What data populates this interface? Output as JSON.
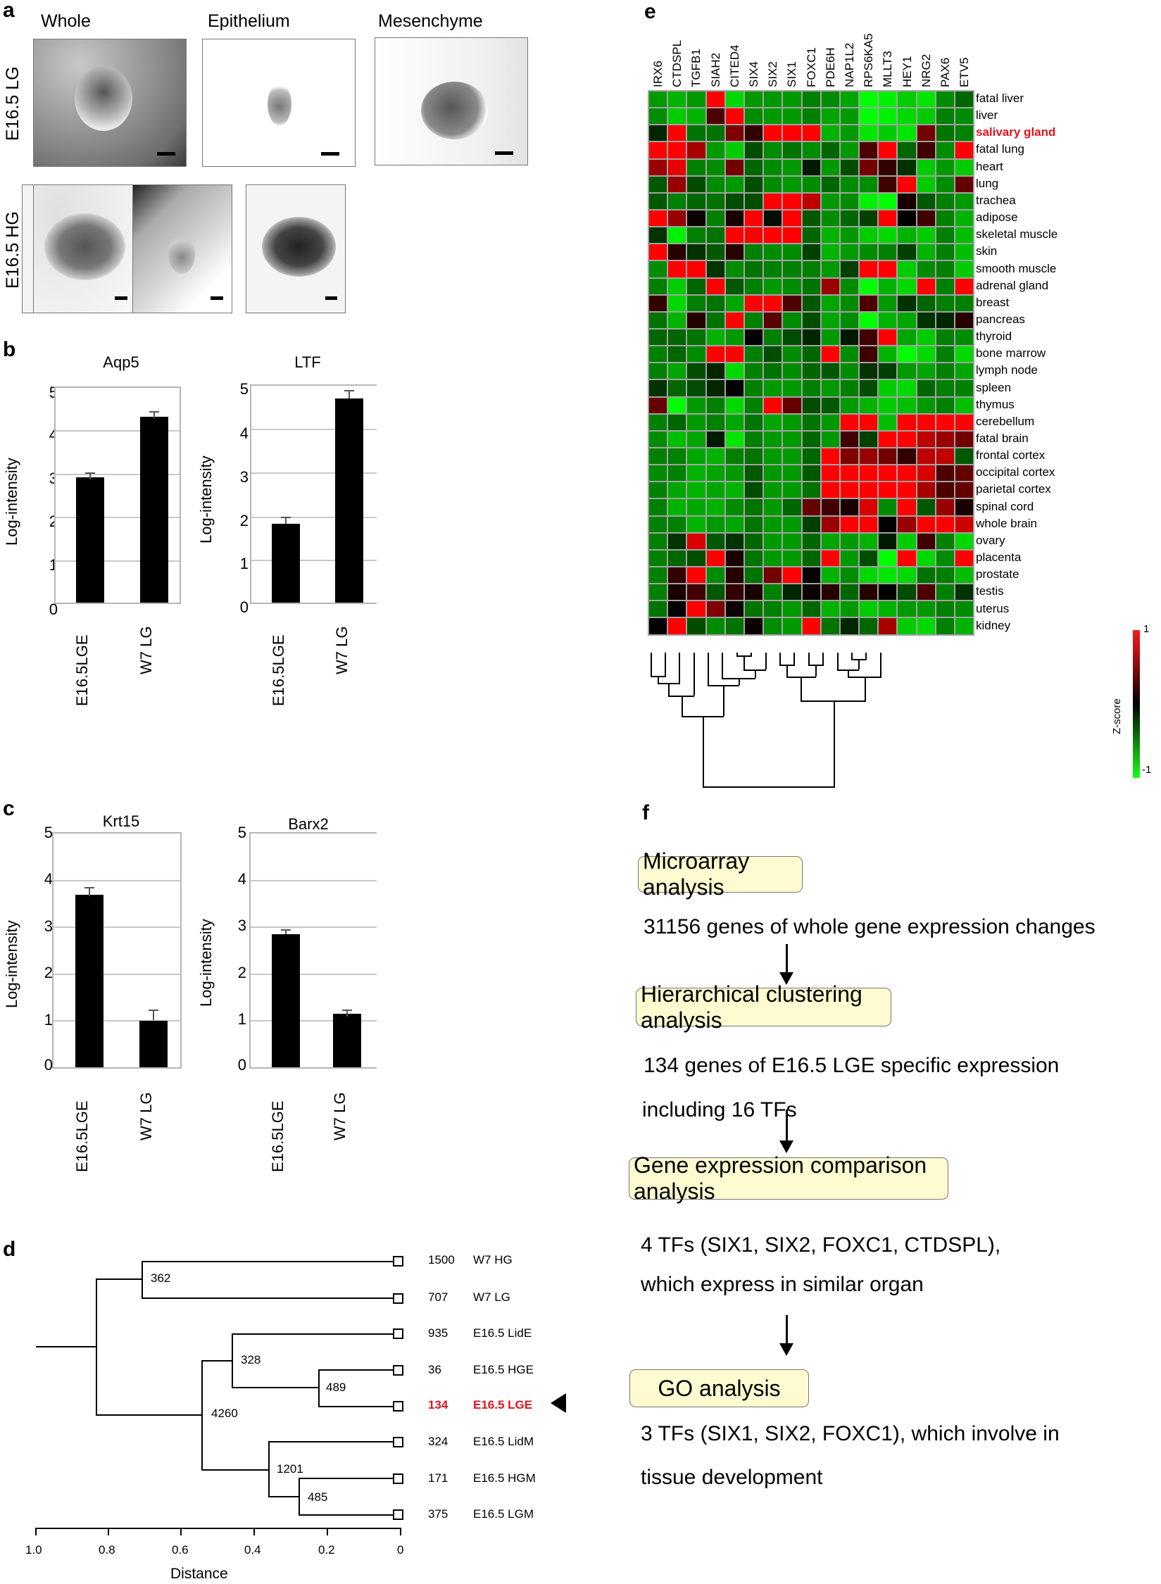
{
  "panels": {
    "a": {
      "letter": "a",
      "columns": [
        "Whole",
        "Epithelium",
        "Mesenchyme"
      ],
      "rows": [
        "E16.5 LG",
        "E16.5 HG"
      ]
    },
    "b": {
      "letter": "b"
    },
    "c": {
      "letter": "c"
    },
    "d": {
      "letter": "d",
      "xlabel": "Distance",
      "xticks": [
        "1.0",
        "0.8",
        "0.6",
        "0.4",
        "0.2",
        "0"
      ],
      "leaves": [
        {
          "count": "1500",
          "label": "W7 HG",
          "highlight": false
        },
        {
          "count": "707",
          "label": "W7 LG",
          "highlight": false
        },
        {
          "count": "935",
          "label": "E16.5 LidE",
          "highlight": false
        },
        {
          "count": "36",
          "label": "E16.5 HGE",
          "highlight": false
        },
        {
          "count": "134",
          "label": "E16.5 LGE",
          "highlight": true
        },
        {
          "count": "324",
          "label": "E16.5 LidM",
          "highlight": false
        },
        {
          "count": "171",
          "label": "E16.5 HGM",
          "highlight": false
        },
        {
          "count": "375",
          "label": "E16.5 LGM",
          "highlight": false
        }
      ],
      "nodes": [
        "362",
        "328",
        "489",
        "4260",
        "1201",
        "485"
      ],
      "highlight_color": "#e0141e"
    },
    "e": {
      "letter": "e",
      "colorbar_label": "Z-score",
      "colorbar_max": "1",
      "colorbar_min": "-1"
    },
    "f": {
      "letter": "f",
      "steps": [
        {
          "box": "Microarray analysis",
          "lines": [
            "31156 genes of whole gene expression changes"
          ]
        },
        {
          "box": "Hierarchical clustering analysis",
          "lines": [
            "134 genes of E16.5 LGE specific expression",
            "including 16 TFs"
          ]
        },
        {
          "box": "Gene expression comparison analysis",
          "lines": [
            "4 TFs (SIX1, SIX2, FOXC1, CTDSPL),",
            "which express in similar organ"
          ]
        },
        {
          "box": "GO analysis",
          "lines": [
            "3 TFs (SIX1, SIX2, FOXC1), which involve in",
            "tissue development"
          ]
        }
      ]
    }
  },
  "chart_data": [
    {
      "type": "bar",
      "panel": "b",
      "title": "Aqp5",
      "ylabel": "Log-intensity",
      "categories": [
        "E16.5LGE",
        "W7 LG"
      ],
      "values": [
        2.9,
        4.3
      ],
      "errors": [
        0.08,
        0.1
      ],
      "yticks": [
        "0",
        "1",
        "2",
        "3",
        "4",
        "5"
      ],
      "ylim": [
        0,
        5
      ],
      "grid": true
    },
    {
      "type": "bar",
      "panel": "b",
      "title": "LTF",
      "ylabel": "Log-intensity",
      "categories": [
        "E16.5LGE",
        "W7 LG"
      ],
      "values": [
        1.8,
        4.68
      ],
      "errors": [
        0.12,
        0.17
      ],
      "yticks": [
        "0",
        "1",
        "2",
        "3",
        "4",
        "5"
      ],
      "ylim": [
        0,
        5
      ],
      "grid": true
    },
    {
      "type": "bar",
      "panel": "c",
      "title": "Krt15",
      "ylabel": "Log-intensity",
      "categories": [
        "E16.5LGE",
        "W7 LG"
      ],
      "values": [
        3.68,
        1.0
      ],
      "errors": [
        0.19,
        0.23
      ],
      "yticks": [
        "0",
        "1",
        "2",
        "3",
        "4",
        "5"
      ],
      "ylim": [
        0,
        5
      ],
      "grid": true
    },
    {
      "type": "bar",
      "panel": "c",
      "title": "Barx2",
      "ylabel": "Log-intensity",
      "categories": [
        "E16.5LGE",
        "W7 LG"
      ],
      "values": [
        2.83,
        1.14
      ],
      "errors": [
        0.1,
        0.15
      ],
      "yticks": [
        "0",
        "1",
        "2",
        "3",
        "4",
        "5"
      ],
      "ylim": [
        0,
        5
      ],
      "grid": true
    },
    {
      "type": "heatmap",
      "panel": "e",
      "x": [
        "IRX6",
        "CTDSPL",
        "TGFB1",
        "SIAH2",
        "CITED4",
        "SIX4",
        "SIX2",
        "SIX1",
        "FOXC1",
        "PDE6H",
        "NAP1L2",
        "RPS6KA5",
        "MLLT3",
        "HEY1",
        "NRG2",
        "PAX6",
        "ETV5"
      ],
      "y": [
        "fatal liver",
        "liver",
        "salivary gland",
        "fatal lung",
        "heart",
        "lung",
        "trachea",
        "adipose",
        "skeletal muscle",
        "skin",
        "smooth muscle",
        "adrenal gland",
        "breast",
        "pancreas",
        "thyroid",
        "bone marrow",
        "lymph node",
        "spleen",
        "thymus",
        "cerebellum",
        "fatal brain",
        "frontal cortex",
        "occipital cortex",
        "parietal cortex",
        "spinal cord",
        "whole brain",
        "ovary",
        "placenta",
        "prostate",
        "testis",
        "uterus",
        "kidney"
      ],
      "highlight_row": "salivary gland",
      "zlim": [
        -1,
        1
      ],
      "values": [
        [
          -0.6,
          -0.7,
          -0.6,
          1,
          -0.85,
          -0.6,
          -0.6,
          -0.6,
          -0.5,
          -0.55,
          -0.65,
          -1,
          -0.95,
          -0.8,
          -0.9,
          -0.55,
          -0.4
        ],
        [
          -0.55,
          -0.8,
          -0.7,
          0.3,
          1,
          -0.55,
          -0.6,
          -0.6,
          -0.5,
          -0.65,
          -0.6,
          -1,
          -0.95,
          -0.85,
          -0.8,
          -0.5,
          -0.55
        ],
        [
          -0.15,
          1,
          -0.45,
          -0.45,
          0.5,
          0.2,
          1,
          1,
          1,
          -0.7,
          -0.6,
          -0.9,
          -0.8,
          -0.9,
          0.45,
          -0.45,
          -0.5
        ],
        [
          1,
          1,
          0.65,
          -0.6,
          -0.8,
          -0.3,
          -0.55,
          -0.45,
          -0.55,
          -0.4,
          -0.6,
          0.3,
          1,
          -0.4,
          0.25,
          -0.55,
          1
        ],
        [
          0.6,
          0.9,
          -0.5,
          -0.55,
          0.45,
          -0.4,
          -0.55,
          -0.6,
          -0.1,
          -0.6,
          -0.3,
          0.45,
          0.2,
          -0.2,
          -0.8,
          -0.6,
          -0.8
        ],
        [
          -0.35,
          0.6,
          -0.3,
          -0.55,
          -0.6,
          -0.3,
          -0.55,
          -0.6,
          -0.55,
          -0.4,
          -0.55,
          -0.55,
          0.25,
          1,
          -0.8,
          -0.55,
          0.4
        ],
        [
          -0.35,
          -0.5,
          -0.4,
          -0.45,
          -0.3,
          -0.3,
          1,
          1,
          0.75,
          -0.6,
          -0.55,
          -0.95,
          -1,
          0.1,
          -0.35,
          -0.5,
          -0.6
        ],
        [
          1,
          0.6,
          0.05,
          -0.5,
          0.1,
          1,
          -0.05,
          1,
          -0.35,
          -0.55,
          -0.4,
          -0.25,
          1,
          0,
          0.25,
          -0.5,
          -0.7
        ],
        [
          -0.2,
          -0.95,
          -0.5,
          -0.45,
          1,
          1,
          1,
          1,
          -0.4,
          -0.7,
          -0.6,
          -0.8,
          -0.85,
          -0.7,
          -0.8,
          -0.5,
          -0.75
        ],
        [
          1,
          0.15,
          -0.2,
          -0.35,
          0.15,
          -0.5,
          -0.55,
          -0.55,
          -0.25,
          -0.7,
          -0.6,
          -0.55,
          -0.5,
          -0.25,
          -0.7,
          -0.5,
          -0.75
        ],
        [
          -0.55,
          1,
          1,
          -0.2,
          -0.55,
          -0.45,
          -0.5,
          -0.5,
          -0.5,
          -0.6,
          -0.25,
          1,
          1,
          -0.8,
          -0.55,
          -0.5,
          -0.8
        ],
        [
          -0.5,
          -0.8,
          -0.4,
          1,
          -0.35,
          -0.5,
          -0.6,
          -0.55,
          -0.45,
          0.6,
          -0.55,
          -1,
          -0.7,
          -0.85,
          1,
          -0.5,
          1
        ],
        [
          0.2,
          -0.85,
          -0.5,
          -0.45,
          -0.65,
          1,
          1,
          0.3,
          -0.35,
          -0.65,
          -0.55,
          0.3,
          -0.6,
          -0.2,
          -0.4,
          -0.5,
          -0.5
        ],
        [
          -0.45,
          -0.7,
          0.15,
          -0.45,
          1,
          -0.5,
          0.35,
          -0.55,
          -0.3,
          -0.65,
          -0.55,
          -1,
          -0.7,
          -0.65,
          -0.2,
          -0.15,
          0.15
        ],
        [
          -0.4,
          -0.4,
          -0.45,
          -0.7,
          -0.6,
          0,
          -0.5,
          -0.3,
          -0.15,
          -0.6,
          -0.1,
          0.25,
          1,
          -0.65,
          -0.8,
          -0.5,
          -0.55
        ],
        [
          -0.5,
          -0.4,
          -0.55,
          1,
          1,
          -0.5,
          -0.3,
          -0.55,
          -0.4,
          1,
          -0.55,
          0.25,
          -0.7,
          -1,
          -0.85,
          -0.5,
          -0.85
        ],
        [
          -0.5,
          -0.65,
          -0.3,
          -0.15,
          -0.85,
          -0.5,
          -0.45,
          -0.55,
          -0.4,
          -0.35,
          -0.55,
          -0.2,
          -0.25,
          -0.6,
          -0.65,
          -0.5,
          -0.65
        ],
        [
          -0.2,
          -0.4,
          -0.3,
          -0.15,
          0,
          -0.5,
          -0.6,
          -0.6,
          -0.5,
          -0.6,
          -0.5,
          -0.3,
          -0.8,
          -0.85,
          -0.4,
          -0.5,
          -0.5
        ],
        [
          0.4,
          -1,
          -0.6,
          -0.5,
          -0.85,
          -0.5,
          1,
          0.4,
          -0.3,
          -0.35,
          -0.6,
          -0.7,
          -0.8,
          -0.75,
          -0.6,
          -0.5,
          -0.75
        ],
        [
          -0.5,
          -0.4,
          -0.6,
          -0.5,
          -0.65,
          -0.45,
          -0.65,
          -0.6,
          -0.45,
          -0.6,
          1,
          1,
          -0.75,
          1,
          1,
          1,
          1
        ],
        [
          -0.55,
          -0.75,
          -0.65,
          -0.1,
          -0.9,
          -0.5,
          -0.6,
          -0.6,
          -0.4,
          -0.6,
          0.25,
          -0.25,
          1,
          1,
          0.75,
          0.6,
          0.45
        ],
        [
          -0.5,
          -0.5,
          -0.65,
          -0.7,
          -0.5,
          -0.45,
          -0.6,
          -0.6,
          -0.4,
          1,
          0.5,
          0.6,
          0.45,
          0.2,
          0.75,
          0.75,
          -0.35
        ],
        [
          -0.55,
          -0.5,
          -0.7,
          -0.65,
          -0.6,
          -0.35,
          -0.6,
          -0.6,
          -0.35,
          1,
          1,
          1,
          1,
          1,
          0.85,
          0.3,
          0.4
        ],
        [
          -0.5,
          -0.65,
          -0.7,
          -0.65,
          -0.7,
          -0.3,
          -0.6,
          -0.6,
          -0.45,
          1,
          1,
          1,
          1,
          1,
          0.65,
          0.3,
          0.4
        ],
        [
          -0.5,
          -0.7,
          -0.65,
          -0.7,
          -0.55,
          -0.45,
          -0.6,
          -0.4,
          0.4,
          0.25,
          0.1,
          0.85,
          -0.55,
          1,
          -0.35,
          0.6,
          0.1
        ],
        [
          -0.5,
          -0.5,
          -0.7,
          -0.6,
          -0.65,
          -0.45,
          -0.6,
          -0.6,
          -0.25,
          0.6,
          1,
          1,
          0,
          0.6,
          1,
          1,
          0.8
        ],
        [
          -0.5,
          -0.2,
          0.85,
          -0.35,
          -0.2,
          -0.4,
          -0.6,
          -0.6,
          -0.4,
          -0.65,
          -0.6,
          -0.7,
          -0.1,
          -0.8,
          0.25,
          -0.5,
          -0.85
        ],
        [
          -0.5,
          -0.4,
          -0.3,
          1,
          0.1,
          -0.45,
          -0.6,
          -0.6,
          -0.4,
          1,
          -0.6,
          -0.3,
          -1,
          1,
          -0.85,
          -0.55,
          1
        ],
        [
          -0.5,
          0.2,
          1,
          -0.55,
          0.15,
          -0.45,
          0.45,
          1,
          0,
          -0.7,
          -0.55,
          -0.85,
          -0.9,
          -0.85,
          -0.45,
          -0.5,
          -0.75
        ],
        [
          -0.5,
          0.1,
          0.25,
          -0.35,
          0.2,
          0.1,
          -0.5,
          -0.15,
          0.05,
          0.15,
          -0.4,
          0.15,
          0,
          -0.3,
          0.3,
          -0.5,
          -0.2
        ],
        [
          -0.45,
          0,
          1,
          0.5,
          0.05,
          -0.45,
          -0.5,
          -0.6,
          -0.4,
          -0.7,
          -0.6,
          -0.8,
          -0.7,
          -0.6,
          -0.6,
          -0.5,
          -0.55
        ],
        [
          0,
          1,
          -0.3,
          -0.55,
          -0.45,
          0.05,
          -0.55,
          -0.6,
          1,
          -0.45,
          -0.15,
          -0.4,
          0.65,
          -0.8,
          -0.85,
          -0.5,
          -0.7
        ]
      ]
    }
  ]
}
